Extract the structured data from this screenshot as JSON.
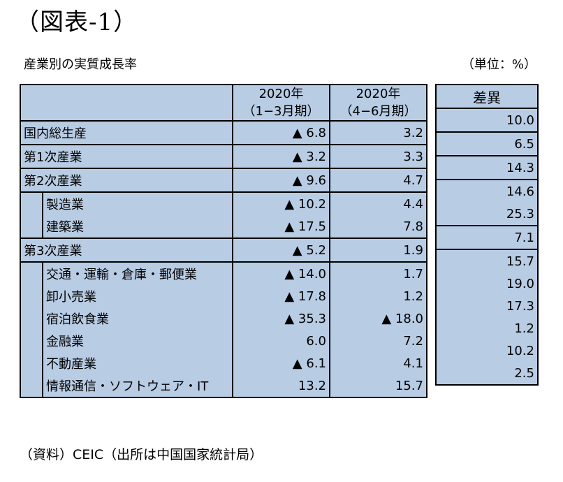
{
  "figure_title": "（図表-1）",
  "caption": "産業別の実質成長率",
  "unit": "（単位：%）",
  "header": {
    "col1": [
      "2020年",
      "（1−3月期）"
    ],
    "col2": [
      "2020年",
      "（4−6月期）"
    ],
    "diff": "差異"
  },
  "rows": [
    {
      "label": "国内総生産",
      "q1": "▲ 6.8",
      "q2": "3.2",
      "diff": "10.0"
    },
    {
      "label": "第1次産業",
      "q1": "▲ 3.2",
      "q2": "3.3",
      "diff": "6.5"
    },
    {
      "label": "第2次産業",
      "q1": "▲ 9.6",
      "q2": "4.7",
      "diff": "14.3"
    },
    {
      "label": "製造業",
      "q1": "▲ 10.2",
      "q2": "4.4",
      "diff": "14.6"
    },
    {
      "label": "建築業",
      "q1": "▲ 17.5",
      "q2": "7.8",
      "diff": "25.3"
    },
    {
      "label": "第3次産業",
      "q1": "▲ 5.2",
      "q2": "1.9",
      "diff": "7.1"
    },
    {
      "label": "交通・運輸・倉庫・郵便業",
      "q1": "▲ 14.0",
      "q2": "1.7",
      "diff": "15.7"
    },
    {
      "label": "卸小売業",
      "q1": "▲ 17.8",
      "q2": "1.2",
      "diff": "19.0"
    },
    {
      "label": "宿泊飲食業",
      "q1": "▲ 35.3",
      "q2": "▲ 18.0",
      "diff": "17.3"
    },
    {
      "label": "金融業",
      "q1": "6.0",
      "q2": "7.2",
      "diff": "1.2"
    },
    {
      "label": "不動産業",
      "q1": "▲ 6.1",
      "q2": "4.1",
      "diff": "10.2"
    },
    {
      "label": "情報通信・ソフトウェア・IT",
      "q1": "13.2",
      "q2": "15.7",
      "diff": "2.5"
    }
  ],
  "footnote": "（資料）CEIC（出所は中国国家統計局）"
}
